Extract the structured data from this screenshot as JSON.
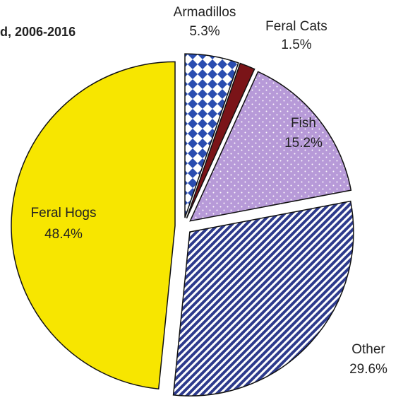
{
  "chart_data": {
    "type": "pie",
    "title": "d, 2006-2016",
    "categories": [
      "Armadillos",
      "Feral Cats",
      "Fish",
      "Other",
      "Feral Hogs"
    ],
    "values": [
      5.3,
      1.5,
      15.2,
      29.6,
      48.4
    ],
    "value_labels": [
      "5.3%",
      "1.5%",
      "15.2%",
      "29.6%",
      "48.4%"
    ],
    "colors": [
      "#2a4db0",
      "#7a1418",
      "#b79ad8",
      "#2d3a8c",
      "#f7e600"
    ],
    "patterns": [
      "checker",
      "solid",
      "dots",
      "stripes",
      "solid"
    ]
  }
}
